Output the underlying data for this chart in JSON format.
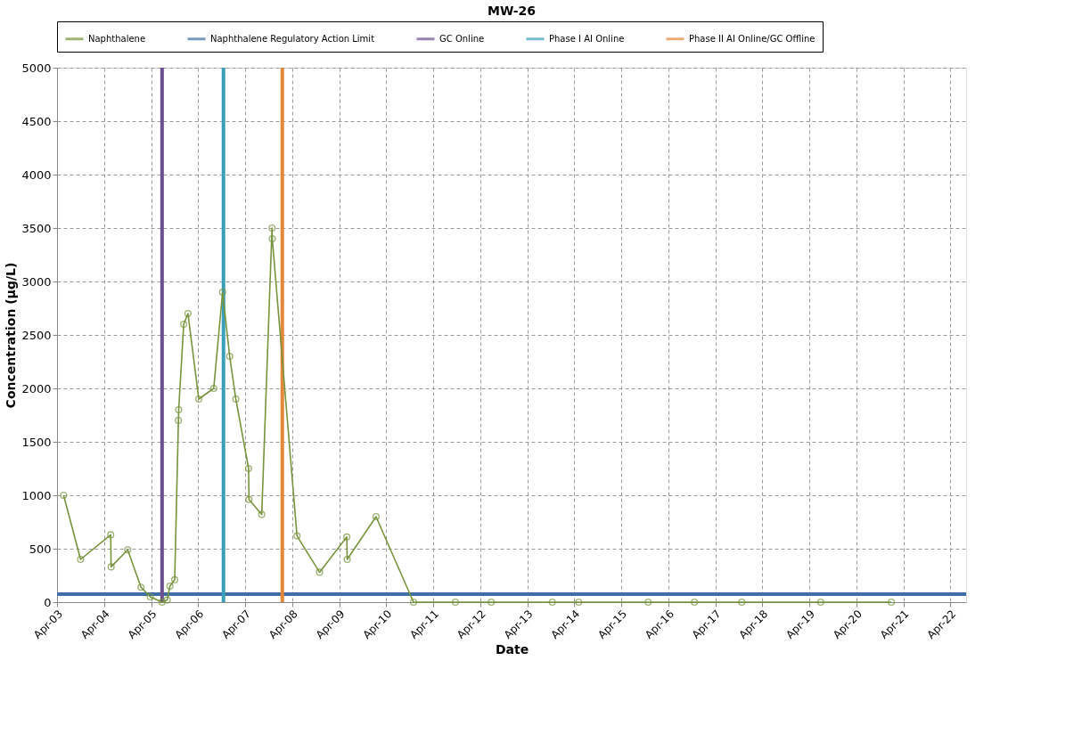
{
  "chart_data": {
    "type": "line",
    "title": "MW-26",
    "xlabel": "Date",
    "ylabel": "Concentration (µg/L)",
    "x": [
      "2003-05-22",
      "2003-10-01",
      "2004-05-22",
      "2004-05-25",
      "2004-10-01",
      "2005-01-12",
      "2005-03-25",
      "2005-06-25",
      "2005-08-04",
      "2005-08-25",
      "2005-10-01",
      "2005-10-30",
      "2005-11-01",
      "2005-12-10",
      "2006-01-12",
      "2006-04-06",
      "2006-07-31",
      "2006-10-08",
      "2006-12-02",
      "2007-01-19",
      "2007-04-28",
      "2007-05-01",
      "2007-08-08",
      "2007-10-27",
      "2007-10-29",
      "2008-05-08",
      "2008-10-30",
      "2009-05-30",
      "2009-06-02",
      "2010-01-12",
      "2010-10-30",
      "2011-09-20",
      "2012-06-25",
      "2013-10-12",
      "2014-05-05",
      "2015-10-27",
      "2016-10-20",
      "2017-10-23",
      "2019-06-28",
      "2020-12-28"
    ],
    "series": [
      {
        "name": "Naphthalene",
        "color": "#77933c",
        "values": [
          1000,
          400,
          630,
          330,
          490,
          140,
          50,
          0,
          20,
          150,
          210,
          1700,
          1800,
          2600,
          2700,
          1900,
          2000,
          2900,
          2300,
          1900,
          1250,
          960,
          820,
          3500,
          3400,
          620,
          280,
          610,
          400,
          800,
          0,
          0,
          0,
          0,
          0,
          0,
          0,
          0,
          0,
          0
        ]
      }
    ],
    "ref_lines": [
      {
        "axis": "y",
        "value": 75,
        "label": "Naphthalene Regulatory Action Limit",
        "color": "#3d6ea6"
      },
      {
        "axis": "x",
        "value": "2005-06-25",
        "label": "GC Online",
        "color": "#6b4f8e"
      },
      {
        "axis": "x",
        "value": "2006-10-15",
        "label": "Phase I AI Online",
        "color": "#3a9fb8"
      },
      {
        "axis": "x",
        "value": "2008-01-15",
        "label": "Phase II AI Online/GC Offline",
        "color": "#e3873a"
      }
    ],
    "xlim": [
      "2003-04-01",
      "2022-08-01"
    ],
    "xticks": [
      {
        "value": "2003-04-01",
        "label": "Apr-03"
      },
      {
        "value": "2004-04-01",
        "label": "Apr-04"
      },
      {
        "value": "2005-04-01",
        "label": "Apr-05"
      },
      {
        "value": "2006-04-01",
        "label": "Apr-06"
      },
      {
        "value": "2007-04-01",
        "label": "Apr-07"
      },
      {
        "value": "2008-04-01",
        "label": "Apr-08"
      },
      {
        "value": "2009-04-01",
        "label": "Apr-09"
      },
      {
        "value": "2010-04-01",
        "label": "Apr-10"
      },
      {
        "value": "2011-04-01",
        "label": "Apr-11"
      },
      {
        "value": "2012-04-01",
        "label": "Apr-12"
      },
      {
        "value": "2013-04-01",
        "label": "Apr-13"
      },
      {
        "value": "2014-04-01",
        "label": "Apr-14"
      },
      {
        "value": "2015-04-01",
        "label": "Apr-15"
      },
      {
        "value": "2016-04-01",
        "label": "Apr-16"
      },
      {
        "value": "2017-04-01",
        "label": "Apr-17"
      },
      {
        "value": "2018-04-01",
        "label": "Apr-18"
      },
      {
        "value": "2019-04-01",
        "label": "Apr-19"
      },
      {
        "value": "2020-04-01",
        "label": "Apr-20"
      },
      {
        "value": "2021-04-01",
        "label": "Apr-21"
      },
      {
        "value": "2022-04-01",
        "label": "Apr-22"
      }
    ],
    "ylim": [
      0,
      5000
    ],
    "yticks": [
      0,
      500,
      1000,
      1500,
      2000,
      2500,
      3000,
      3500,
      4000,
      4500,
      5000
    ],
    "grid": true,
    "legend": "top",
    "marker": "circle",
    "line_style": "solid"
  }
}
